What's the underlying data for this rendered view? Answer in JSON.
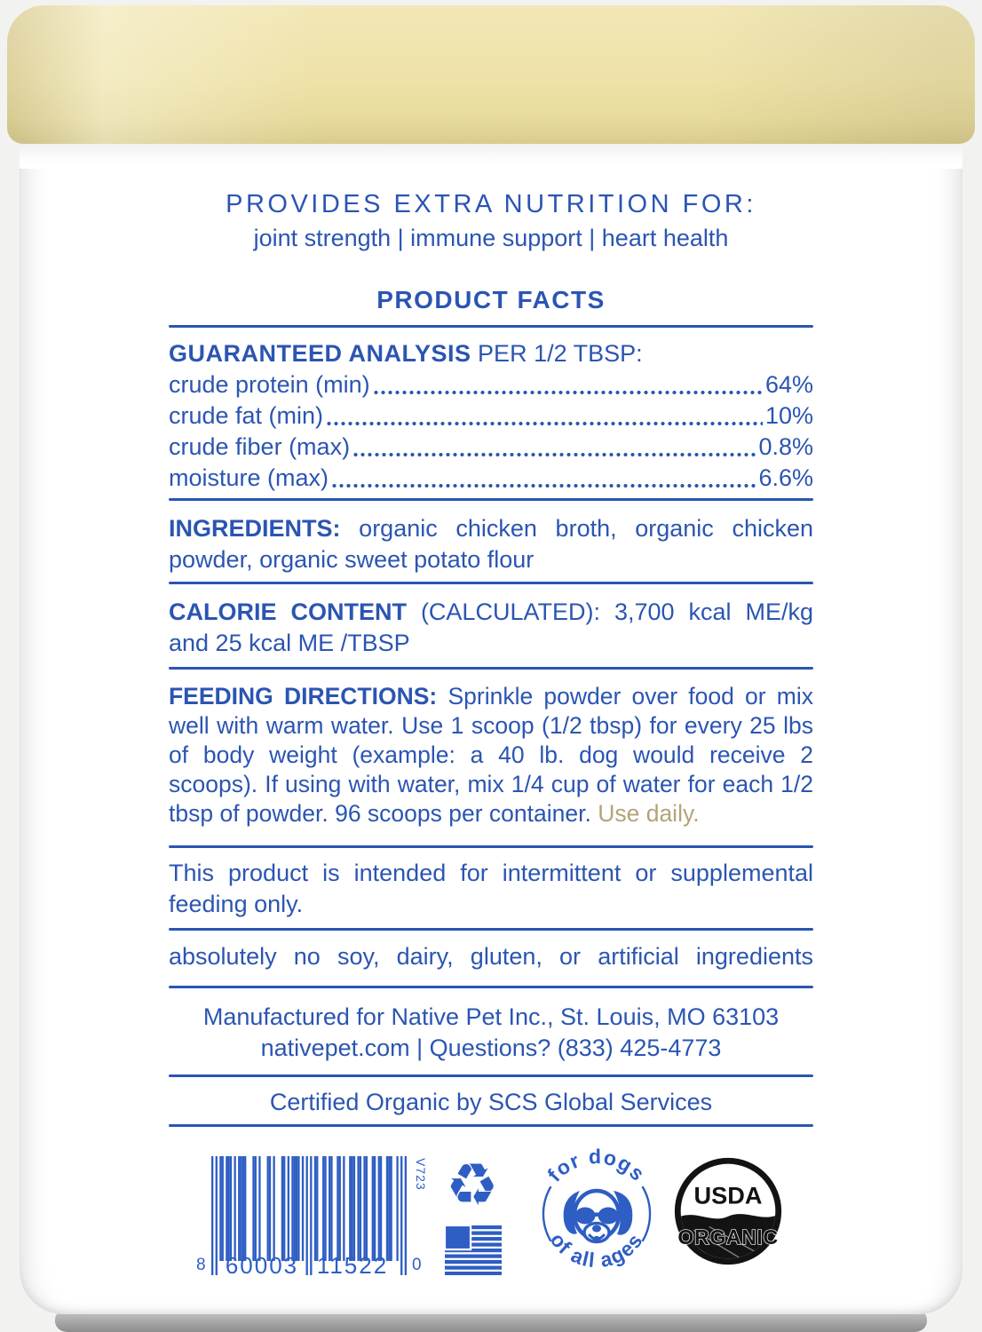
{
  "colors": {
    "text_blue": "#2b55b2",
    "icon_blue": "#2e5ec4",
    "tan": "#b4a377",
    "lid_cream": "#eee2a8",
    "usda_black": "#131313"
  },
  "header": {
    "provides_title": "PROVIDES EXTRA NUTRITION FOR:",
    "provides_subtitle": "joint strength | immune support | heart health",
    "product_facts_title": "PRODUCT FACTS"
  },
  "guaranteed_analysis": {
    "heading_bold": "GUARANTEED ANALYSIS",
    "heading_rest": " PER 1/2 TBSP:",
    "rows": [
      {
        "label": "crude protein (min)",
        "value": "64%"
      },
      {
        "label": "crude fat (min)",
        "value": "10%"
      },
      {
        "label": "crude fiber (max)",
        "value": "0.8%"
      },
      {
        "label": "moisture (max)",
        "value": "6.6%"
      }
    ]
  },
  "ingredients": {
    "label": "INGREDIENTS:",
    "text": "organic chicken broth, organic chicken powder, organic sweet potato flour"
  },
  "calorie_content": {
    "label": "CALORIE CONTENT",
    "label_rest": "(CALCULATED):",
    "text": "3,700 kcal ME/kg and 25 kcal ME /TBSP"
  },
  "feeding_directions": {
    "label": "FEEDING DIRECTIONS:",
    "text": "Sprinkle powder over food or mix well with warm water. Use 1 scoop (1/2 tbsp) for every 25 lbs of body weight (example: a 40 lb. dog would receive 2 scoops). If using with water, mix 1/4 cup of water for each 1/2 tbsp of powder. 96 scoops per container.",
    "highlight": "Use daily."
  },
  "notices": {
    "intermittent": "This product is intended for intermittent or supplemental feeding only.",
    "no_fillers": "absolutely no soy, dairy, gluten, or artificial ingredients"
  },
  "footer": {
    "manufactured": "Manufactured for Native Pet Inc., St. Louis, MO 63103",
    "contact": "nativepet.com | Questions? (833) 425-4773",
    "certified": "Certified Organic by SCS Global Services"
  },
  "barcode": {
    "code": "860003115220",
    "left_digit": "8",
    "group1": "60003",
    "group2": "11522",
    "right_digit": "0",
    "version": "V723"
  },
  "stamps": {
    "recycle_icon": "♻",
    "dog_top": "for dogs",
    "dog_bottom": "of all ages",
    "usda_top": "USDA",
    "usda_bottom": "ORGANIC"
  }
}
